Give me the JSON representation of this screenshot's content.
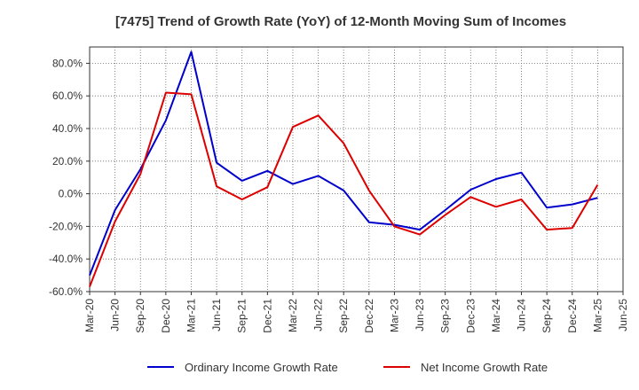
{
  "chart_data": {
    "type": "line",
    "title": "[7475]  Trend of Growth Rate (YoY) of 12-Month Moving Sum of Incomes",
    "xlabel": "",
    "ylabel": "",
    "x": [
      "Mar-20",
      "Jun-20",
      "Sep-20",
      "Dec-20",
      "Mar-21",
      "Jun-21",
      "Sep-21",
      "Dec-21",
      "Mar-22",
      "Jun-22",
      "Sep-22",
      "Dec-22",
      "Mar-23",
      "Jun-23",
      "Sep-23",
      "Dec-23",
      "Mar-24",
      "Jun-24",
      "Sep-24",
      "Dec-24",
      "Mar-25",
      "Jun-25"
    ],
    "ylim": [
      -60,
      90
    ],
    "yticks": [
      -60,
      -40,
      -20,
      0,
      20,
      40,
      60,
      80
    ],
    "ytick_labels": [
      "-60.0%",
      "-40.0%",
      "-20.0%",
      "0.0%",
      "20.0%",
      "40.0%",
      "60.0%",
      "80.0%"
    ],
    "grid": true,
    "legend_position": "bottom",
    "series": [
      {
        "name": "Ordinary Income Growth Rate",
        "color": "#0000cc",
        "values": [
          -50,
          -10,
          15,
          45,
          87,
          19,
          8,
          14,
          6,
          11,
          2,
          -17.5,
          -19,
          -22,
          -10,
          2.5,
          9,
          13,
          -8.5,
          -6.5,
          -2.5,
          null
        ]
      },
      {
        "name": "Net Income Growth Rate",
        "color": "#dd0000",
        "values": [
          -57,
          -17,
          12,
          62,
          61,
          4.5,
          -3.5,
          4,
          41,
          48,
          31,
          2,
          -20,
          -25,
          -13,
          -2,
          -8,
          -3.5,
          -22,
          -21,
          5.5,
          null
        ]
      }
    ]
  }
}
